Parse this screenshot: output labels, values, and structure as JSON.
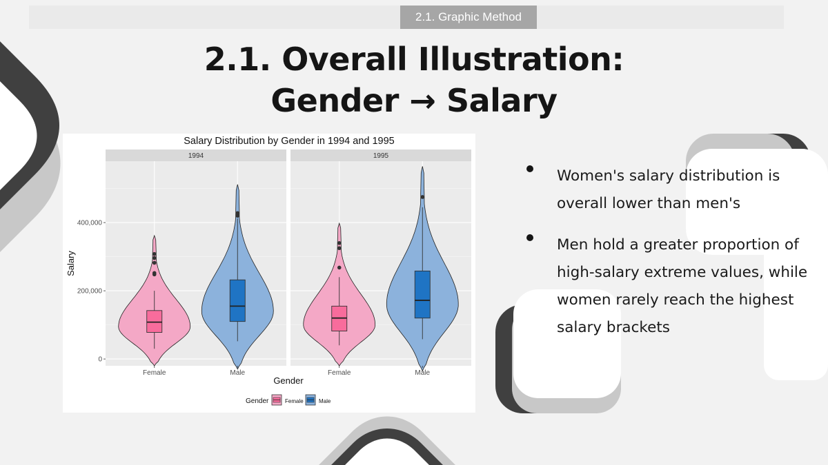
{
  "header": {
    "section_tag": "2.1. Graphic Method",
    "title_line1": "2.1. Overall Illustration:",
    "title_line2": "Gender → Salary"
  },
  "colors": {
    "female_violin": "#f4a8c6",
    "female_box": "#f86c9c",
    "male_violin": "#8cb2dc",
    "male_box": "#1f74c4",
    "panel_bg": "#ebebeb",
    "strip_bg": "#d9d9d9",
    "dark_accent": "#404040",
    "light_accent": "#c8c8c8"
  },
  "bullets": [
    "Women's salary distribution is overall lower than men's",
    "Men hold a greater proportion of high-salary extreme values, while women rarely reach the highest salary brackets"
  ],
  "chart_data": {
    "type": "violin",
    "title": "Salary Distribution by Gender in 1994 and 1995",
    "xlabel": "Gender",
    "ylabel": "Salary",
    "categories": [
      "Female",
      "Male"
    ],
    "y_ticks": [
      0,
      200000,
      400000
    ],
    "y_tick_labels": [
      "0",
      "200,000",
      "400,000"
    ],
    "ylim": [
      -20000,
      580000
    ],
    "grid": true,
    "legend": {
      "title": "Gender",
      "position": "bottom",
      "entries": [
        "Female",
        "Male"
      ]
    },
    "facets": [
      {
        "label": "1994",
        "groups": [
          {
            "name": "Female",
            "min": 30000,
            "q1": 78000,
            "median": 108000,
            "q3": 142000,
            "max": 200000,
            "violin_min": -20000,
            "violin_max": 362000,
            "mode": 95000,
            "outliers": [
              248000,
              252000,
              282000,
              296000,
              308000
            ]
          },
          {
            "name": "Male",
            "min": 52000,
            "q1": 110000,
            "median": 155000,
            "q3": 232000,
            "max": 412000,
            "violin_min": -30000,
            "violin_max": 512000,
            "mode": 140000,
            "outliers": [
              420000,
              428000
            ]
          }
        ]
      },
      {
        "label": "1995",
        "groups": [
          {
            "name": "Female",
            "min": 40000,
            "q1": 82000,
            "median": 120000,
            "q3": 155000,
            "max": 240000,
            "violin_min": -20000,
            "violin_max": 398000,
            "mode": 100000,
            "outliers": [
              268000,
              325000,
              340000
            ]
          },
          {
            "name": "Male",
            "min": 58000,
            "q1": 120000,
            "median": 172000,
            "q3": 258000,
            "max": 445000,
            "violin_min": -35000,
            "violin_max": 565000,
            "mode": 160000,
            "outliers": [
              475000
            ]
          }
        ]
      }
    ]
  }
}
